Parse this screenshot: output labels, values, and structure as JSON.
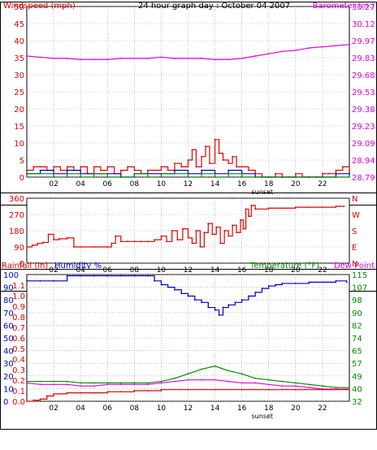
{
  "chart_data": [
    {
      "panel": "wind-barometer",
      "type": "line",
      "title": "24 hour graph day : October 04 2007",
      "ylabel_left": "Windspeed (mph)",
      "ylabel_right": "Barometer (in.)",
      "ylim_left": [
        0,
        50
      ],
      "ylim_right": [
        28.79,
        30.27
      ],
      "yticks_left": [
        "0",
        "5",
        "10",
        "15",
        "20",
        "25",
        "30",
        "35",
        "40",
        "45",
        "50"
      ],
      "yticks_right": [
        "28.79",
        "28.94",
        "29.09",
        "29.23",
        "29.38",
        "29.53",
        "29.68",
        "29.83",
        "29.97",
        "30.12",
        "30.27"
      ],
      "x_ticks": [
        "02",
        "04",
        "06",
        "08",
        "10",
        "12",
        "14",
        "16",
        "18",
        "20",
        "22"
      ],
      "x_note": "sunset",
      "xlim": [
        0,
        24
      ],
      "colors": {
        "barometer": "#e000e0",
        "gust": "#e00000",
        "wind": "#0000cc",
        "windspeed_avg": "#008800"
      },
      "series": [
        {
          "key": "barometer",
          "axis": "right",
          "x": [
            0,
            1,
            2,
            3,
            4,
            5,
            6,
            7,
            8,
            9,
            10,
            11,
            12,
            13,
            14,
            15,
            16,
            17,
            18,
            19,
            20,
            21,
            22,
            23,
            24
          ],
          "values": [
            29.84,
            29.83,
            29.82,
            29.82,
            29.81,
            29.81,
            29.81,
            29.82,
            29.82,
            29.82,
            29.83,
            29.82,
            29.82,
            29.82,
            29.81,
            29.81,
            29.82,
            29.84,
            29.86,
            29.88,
            29.89,
            29.91,
            29.92,
            29.93,
            29.94
          ]
        },
        {
          "key": "gust",
          "axis": "left",
          "x": [
            0,
            0.5,
            1,
            1.5,
            2,
            2.5,
            3,
            3.5,
            4,
            4.5,
            5,
            5.5,
            6,
            6.5,
            7,
            7.5,
            8,
            8.5,
            9,
            9.5,
            10,
            10.5,
            11,
            11.5,
            12,
            12.3,
            12.6,
            13,
            13.3,
            13.6,
            14,
            14.3,
            14.6,
            15,
            15.3,
            15.6,
            16,
            16.5,
            17,
            17.5,
            18,
            18.5,
            19,
            19.5,
            20,
            20.5,
            21,
            21.5,
            22,
            22.5,
            23,
            23.5,
            24
          ],
          "values": [
            2,
            3,
            3,
            2,
            3,
            2,
            3,
            2,
            3,
            1,
            3,
            2,
            3,
            1,
            2,
            3,
            2,
            1,
            2,
            2,
            3,
            2,
            4,
            3,
            5,
            8,
            3,
            6,
            9,
            4,
            11,
            7,
            5,
            4,
            6,
            3,
            3,
            2,
            1,
            0,
            0,
            1,
            0,
            0,
            1,
            0,
            0,
            0,
            1,
            1,
            2,
            3,
            2
          ]
        },
        {
          "key": "wind",
          "axis": "left",
          "x": [
            0,
            1,
            2,
            3,
            4,
            5,
            6,
            7,
            8,
            9,
            10,
            11,
            12,
            13,
            14,
            15,
            16,
            17,
            18,
            19,
            20,
            21,
            22,
            23,
            24
          ],
          "values": [
            1,
            2,
            1,
            2,
            1,
            1,
            1,
            0,
            1,
            1,
            1,
            2,
            1,
            2,
            1,
            2,
            1,
            0,
            0,
            0,
            0,
            0,
            0,
            1,
            1
          ]
        },
        {
          "key": "windspeed_avg",
          "axis": "left",
          "x": [
            0,
            1,
            2,
            3,
            4,
            5,
            6,
            7,
            8,
            9,
            10,
            11,
            12,
            13,
            14,
            15,
            16,
            17,
            18,
            19,
            20,
            21,
            22,
            23,
            24
          ],
          "values": [
            1,
            1,
            0,
            1,
            0,
            1,
            0,
            0,
            1,
            0,
            1,
            1,
            0,
            1,
            0,
            1,
            0,
            0,
            0,
            0,
            0,
            0,
            0,
            0,
            0
          ]
        }
      ]
    },
    {
      "panel": "direction",
      "type": "line",
      "ylim": [
        0,
        360
      ],
      "yticks_left": [
        "0",
        "90",
        "180",
        "270",
        "360"
      ],
      "yticks_right": [
        "N",
        "E",
        "S",
        "W",
        "N"
      ],
      "x_ticks": [
        "02",
        "04",
        "06",
        "08",
        "10",
        "12",
        "14",
        "16",
        "18",
        "20",
        "22"
      ],
      "xlim": [
        0,
        24
      ],
      "colors": {
        "direction": "#e00000"
      },
      "series": [
        {
          "key": "direction",
          "x": [
            0,
            0.4,
            0.8,
            1.2,
            1.6,
            2,
            2.4,
            3,
            3.5,
            4,
            5,
            6,
            6.3,
            6.6,
            7,
            7.5,
            8,
            8.5,
            9,
            9.5,
            10,
            10.4,
            10.8,
            11.2,
            11.6,
            12,
            12.3,
            12.6,
            12.9,
            13.2,
            13.5,
            13.8,
            14.1,
            14.4,
            14.7,
            15,
            15.3,
            15.6,
            15.9,
            16.1,
            16.3,
            16.5,
            16.7,
            17,
            18,
            19,
            20,
            21,
            22,
            23,
            23.6
          ],
          "values": [
            90,
            100,
            110,
            115,
            160,
            130,
            135,
            140,
            90,
            90,
            90,
            90,
            110,
            150,
            120,
            120,
            120,
            120,
            120,
            130,
            150,
            120,
            180,
            130,
            190,
            140,
            110,
            180,
            90,
            170,
            220,
            160,
            200,
            110,
            180,
            150,
            210,
            170,
            240,
            190,
            300,
            260,
            320,
            300,
            305,
            305,
            310,
            310,
            310,
            315,
            315
          ]
        }
      ]
    },
    {
      "panel": "rain-humidity-temperature",
      "type": "line",
      "ylabel_left_rain": "Rainfall (in)",
      "ylabel_left_humidity": "Humidity %",
      "ylabel_right_temp": "Temperature (°F)",
      "ylabel_right_dew": "Dew Point",
      "ylim_rain": [
        0,
        1.2
      ],
      "ylim_humidity": [
        0,
        100
      ],
      "ylim_temp": [
        32,
        115
      ],
      "yticks_rain": [
        "0.0",
        "0.1",
        "0.2",
        "0.3",
        "0.4",
        "0.5",
        "0.6",
        "0.7",
        "0.8",
        "0.9",
        "1.0",
        "1.1"
      ],
      "yticks_humidity": [
        "0",
        "10",
        "20",
        "30",
        "40",
        "50",
        "60",
        "70",
        "80",
        "90",
        "100"
      ],
      "yticks_temp": [
        "32",
        "40",
        "49",
        "57",
        "65",
        "74",
        "82",
        "90",
        "98",
        "107",
        "115"
      ],
      "x_ticks": [
        "02",
        "04",
        "06",
        "08",
        "10",
        "12",
        "14",
        "16",
        "18",
        "20",
        "22"
      ],
      "x_note": "sunset",
      "xlim": [
        0,
        24
      ],
      "colors": {
        "humidity": "#0000cc",
        "temperature": "#008800",
        "dewpoint": "#e000e0",
        "rainfall": "#e00000"
      },
      "series": [
        {
          "key": "humidity",
          "axis": "humidity",
          "x": [
            0,
            1,
            2,
            3,
            4,
            5,
            6,
            7,
            8,
            9,
            9.5,
            10,
            10.5,
            11,
            11.5,
            12,
            12.5,
            13,
            13.5,
            14,
            14.3,
            14.6,
            15,
            15.5,
            16,
            16.5,
            17,
            17.5,
            18,
            18.5,
            19,
            20,
            21,
            22,
            23,
            23.8
          ],
          "values": [
            95,
            95,
            95,
            99,
            99,
            99,
            99,
            99,
            99,
            99,
            95,
            92,
            90,
            88,
            85,
            83,
            80,
            78,
            74,
            72,
            68,
            74,
            76,
            78,
            80,
            83,
            86,
            89,
            91,
            92,
            93,
            93,
            94,
            94,
            95,
            94
          ]
        },
        {
          "key": "temperature",
          "axis": "temp",
          "x": [
            0,
            1,
            2,
            3,
            4,
            5,
            6,
            7,
            8,
            9,
            10,
            11,
            12,
            13,
            14,
            15,
            16,
            17,
            18,
            19,
            20,
            21,
            22,
            23,
            24
          ],
          "values": [
            45,
            45,
            45,
            45,
            44,
            44,
            44,
            44,
            44,
            44,
            45,
            47,
            50,
            53,
            55,
            52,
            50,
            47,
            46,
            45,
            44,
            43,
            42,
            41,
            41
          ]
        },
        {
          "key": "dewpoint",
          "axis": "temp",
          "x": [
            0,
            1,
            2,
            3,
            4,
            5,
            6,
            7,
            8,
            9,
            10,
            11,
            12,
            13,
            14,
            15,
            16,
            17,
            18,
            19,
            20,
            21,
            22,
            23,
            24
          ],
          "values": [
            44,
            43,
            43,
            43,
            42,
            42,
            43,
            43,
            43,
            43,
            44,
            45,
            46,
            46,
            46,
            45,
            44,
            44,
            43,
            42,
            42,
            41,
            40,
            40,
            40
          ]
        },
        {
          "key": "rainfall",
          "axis": "rain",
          "x": [
            0,
            0.5,
            1,
            1.5,
            2,
            3,
            4,
            5,
            6,
            7,
            8,
            9,
            10,
            12,
            14,
            16,
            18,
            20,
            22,
            23.9
          ],
          "values": [
            0,
            0.01,
            0.02,
            0.05,
            0.07,
            0.08,
            0.08,
            0.08,
            0.09,
            0.09,
            0.1,
            0.1,
            0.11,
            0.11,
            0.11,
            0.11,
            0.11,
            0.11,
            0.11,
            0.11
          ]
        }
      ]
    }
  ]
}
